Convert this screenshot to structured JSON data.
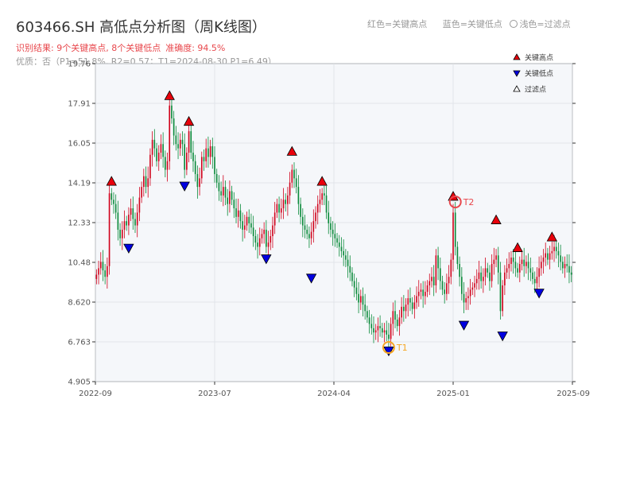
{
  "header": {
    "title": "603466.SH 高低点分析图（周K线图）",
    "result_text": "识别结果: 9个关键高点, 8个关键低点",
    "accuracy_text": "准确度: 94.5%",
    "quality_text": "优质：否（P1=51.8%, R2=0.57；T1=2024-08-30 P1=6.49）",
    "legend_red": "红色=关键高点",
    "legend_blue": "蓝色=关键低点",
    "legend_light": "浅色=过滤点"
  },
  "colors": {
    "up": "#d0021b",
    "down": "#0a8a3a",
    "high": "#e8000b",
    "low": "#0000e0",
    "t1": "#f5a623",
    "t2": "#e8474c"
  },
  "chart_data": {
    "type": "candlestick",
    "title": "603466.SH 高低点分析图（周K线图）",
    "y_ticks": [
      "19.76",
      "17.91",
      "16.05",
      "14.19",
      "12.33",
      "10.48",
      "8.620",
      "6.763",
      "4.905"
    ],
    "ylim": [
      4.905,
      19.76
    ],
    "x_ticks": [
      "2022-09",
      "2023-07",
      "2024-04",
      "2025-01",
      "2025-09"
    ],
    "legend": [
      "关键高点",
      "关键低点",
      "过滤点"
    ],
    "grid": true,
    "legend_position": "top-right",
    "t_labels": {
      "t1": "T1",
      "t2": "T2"
    },
    "t1": {
      "x": 136,
      "value": 6.5
    },
    "t2": {
      "x": 167,
      "value": 13.3
    },
    "key_highs": [
      {
        "x": 7,
        "value": 14.0
      },
      {
        "x": 34,
        "value": 18.0
      },
      {
        "x": 43,
        "value": 16.8
      },
      {
        "x": 91,
        "value": 15.4
      },
      {
        "x": 105,
        "value": 14.0
      },
      {
        "x": 166,
        "value": 13.3
      },
      {
        "x": 186,
        "value": 12.2
      },
      {
        "x": 196,
        "value": 10.9
      },
      {
        "x": 212,
        "value": 11.4
      }
    ],
    "key_lows": [
      {
        "x": 15,
        "value": 11.4
      },
      {
        "x": 41,
        "value": 14.3
      },
      {
        "x": 79,
        "value": 10.9
      },
      {
        "x": 100,
        "value": 10.0
      },
      {
        "x": 136,
        "value": 6.6
      },
      {
        "x": 171,
        "value": 7.8
      },
      {
        "x": 189,
        "value": 7.3
      },
      {
        "x": 206,
        "value": 9.3
      }
    ],
    "closes": [
      9.9,
      10.2,
      10.5,
      10.1,
      9.8,
      10.3,
      13.7,
      13.4,
      13.2,
      12.8,
      12.0,
      11.6,
      12.0,
      12.4,
      12.2,
      12.7,
      13.0,
      12.5,
      12.2,
      12.8,
      13.5,
      14.0,
      14.5,
      14.0,
      14.4,
      15.5,
      16.2,
      15.8,
      15.2,
      15.6,
      16.0,
      15.4,
      14.8,
      15.2,
      17.8,
      17.2,
      16.4,
      16.0,
      15.8,
      16.2,
      16.0,
      14.8,
      15.6,
      16.6,
      15.6,
      15.2,
      14.6,
      14.0,
      14.4,
      15.4,
      15.2,
      15.8,
      15.4,
      15.9,
      15.4,
      14.6,
      14.2,
      13.8,
      13.6,
      14.0,
      13.5,
      13.2,
      13.8,
      13.4,
      13.0,
      12.6,
      12.9,
      12.4,
      12.0,
      12.2,
      12.6,
      12.3,
      12.1,
      11.7,
      11.4,
      11.2,
      11.6,
      11.8,
      12.0,
      11.2,
      11.4,
      11.7,
      12.2,
      12.8,
      13.2,
      12.8,
      13.0,
      13.4,
      13.2,
      13.6,
      14.2,
      14.8,
      14.4,
      14.0,
      13.2,
      12.6,
      12.2,
      12.0,
      11.8,
      11.6,
      11.9,
      12.4,
      12.8,
      13.2,
      13.4,
      13.7,
      13.6,
      12.8,
      12.3,
      12.0,
      11.8,
      11.6,
      11.4,
      11.2,
      11.0,
      10.8,
      10.6,
      10.3,
      10.0,
      9.6,
      9.3,
      9.0,
      8.6,
      8.9,
      8.5,
      8.2,
      7.9,
      7.6,
      7.4,
      7.2,
      7.3,
      7.5,
      7.4,
      7.2,
      7.3,
      7.1,
      6.9,
      7.6,
      8.2,
      7.8,
      7.5,
      7.9,
      8.4,
      8.2,
      8.5,
      8.8,
      8.6,
      8.3,
      8.6,
      8.9,
      9.1,
      9.2,
      8.9,
      9.1,
      9.4,
      9.6,
      9.8,
      9.4,
      10.8,
      10.2,
      9.6,
      9.2,
      9.0,
      9.5,
      9.8,
      10.6,
      12.8,
      11.2,
      10.4,
      9.8,
      9.0,
      8.6,
      8.8,
      8.9,
      9.2,
      9.3,
      9.5,
      9.7,
      10.0,
      9.6,
      9.8,
      10.2,
      10.0,
      9.6,
      10.4,
      10.6,
      10.8,
      10.0,
      8.2,
      9.4,
      10.0,
      10.2,
      10.4,
      10.7,
      10.5,
      10.2,
      10.0,
      10.4,
      10.6,
      10.3,
      10.5,
      10.2,
      10.0,
      9.7,
      9.5,
      9.8,
      10.2,
      10.5,
      10.7,
      10.9,
      10.6,
      10.9,
      11.0,
      11.2,
      11.0,
      10.8,
      10.5,
      10.2,
      10.4,
      10.3,
      10.0,
      9.9
    ]
  }
}
